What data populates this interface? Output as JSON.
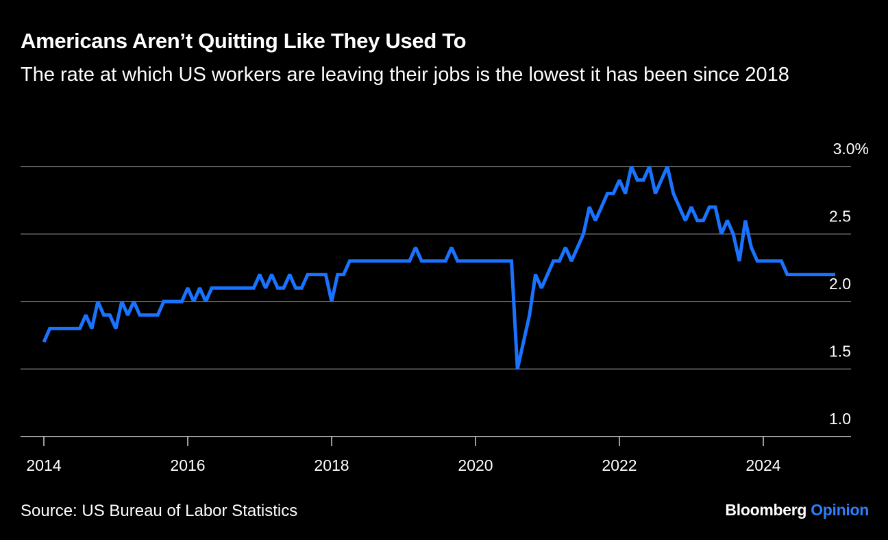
{
  "header": {
    "title": "Americans Aren’t Quitting Like They Used To",
    "subtitle": "The rate at which US workers are leaving their jobs is the lowest it has been since 2018"
  },
  "footer": {
    "source": "Source: US Bureau of Labor Statistics",
    "brand_main": "Bloomberg",
    "brand_accent": "Opinion"
  },
  "colors": {
    "background": "#000000",
    "line": "#1a73ff",
    "grid": "#7a7a7a",
    "accent": "#2d7ff9"
  },
  "chart_data": {
    "type": "line",
    "title": "Americans Aren’t Quitting Like They Used To",
    "subtitle": "The rate at which US workers are leaving their jobs is the lowest it has been since 2018",
    "xlabel": "",
    "ylabel": "",
    "xlim": [
      2014,
      2025
    ],
    "ylim": [
      1.0,
      3.0
    ],
    "y_ticks": [
      1.0,
      1.5,
      2.0,
      2.5,
      3.0
    ],
    "y_tick_labels": [
      "1.0",
      "1.5",
      "2.0",
      "2.5",
      "3.0%"
    ],
    "x_ticks": [
      2014,
      2016,
      2018,
      2020,
      2022,
      2024
    ],
    "x_tick_labels": [
      "2014",
      "2016",
      "2018",
      "2020",
      "2022",
      "2024"
    ],
    "grid": true,
    "y_axis_position": "right",
    "series": [
      {
        "name": "",
        "frequency": "monthly",
        "start": "2014-01",
        "values": [
          1.7,
          1.8,
          1.8,
          1.8,
          1.8,
          1.8,
          1.8,
          1.9,
          1.8,
          2.0,
          1.9,
          1.9,
          1.8,
          2.0,
          1.9,
          2.0,
          1.9,
          1.9,
          1.9,
          1.9,
          2.0,
          2.0,
          2.0,
          2.0,
          2.1,
          2.0,
          2.1,
          2.0,
          2.1,
          2.1,
          2.1,
          2.1,
          2.1,
          2.1,
          2.1,
          2.1,
          2.2,
          2.1,
          2.2,
          2.1,
          2.1,
          2.2,
          2.1,
          2.1,
          2.2,
          2.2,
          2.2,
          2.2,
          2.0,
          2.2,
          2.2,
          2.3,
          2.3,
          2.3,
          2.3,
          2.3,
          2.3,
          2.3,
          2.3,
          2.3,
          2.3,
          2.3,
          2.4,
          2.3,
          2.3,
          2.3,
          2.3,
          2.3,
          2.4,
          2.3,
          2.3,
          2.3,
          2.3,
          2.3,
          2.3,
          2.3,
          2.3,
          2.3,
          2.3,
          1.5,
          1.7,
          1.9,
          2.2,
          2.1,
          2.2,
          2.3,
          2.3,
          2.4,
          2.3,
          2.4,
          2.5,
          2.7,
          2.6,
          2.7,
          2.8,
          2.8,
          2.9,
          2.8,
          3.0,
          2.9,
          2.9,
          3.0,
          2.8,
          2.9,
          3.0,
          2.8,
          2.7,
          2.6,
          2.7,
          2.6,
          2.6,
          2.7,
          2.7,
          2.5,
          2.6,
          2.5,
          2.3,
          2.6,
          2.4,
          2.3,
          2.3,
          2.3,
          2.3,
          2.3,
          2.2,
          2.2,
          2.2,
          2.2,
          2.2,
          2.2,
          2.2,
          2.2,
          2.2
        ]
      }
    ]
  }
}
